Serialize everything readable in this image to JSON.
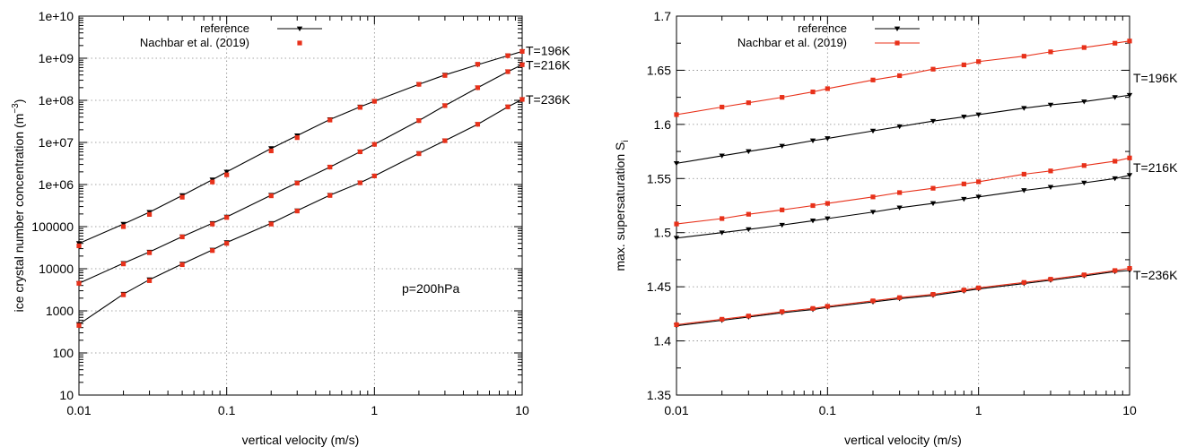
{
  "chart_data": [
    {
      "type": "line",
      "xlabel": "vertical velocity (m/s)",
      "ylabel": "ice crystal number concentration (m",
      "ylabel_sup": "−3",
      "ylabel_close": ")",
      "x_scale": "log",
      "y_scale": "log",
      "xlim": [
        0.01,
        10
      ],
      "ylim": [
        10,
        10000000000
      ],
      "grid": true,
      "legend_position": "top-left",
      "xticks": [
        0.01,
        0.1,
        1,
        10
      ],
      "xtick_labels": [
        "0.01",
        "0.1",
        "1",
        "10"
      ],
      "yticks": [
        10,
        100,
        1000,
        10000,
        100000,
        1000000,
        10000000,
        100000000,
        1000000000,
        10000000000
      ],
      "ytick_labels": [
        "10",
        "100",
        "1000",
        "10000",
        "100000",
        "1e+06",
        "1e+07",
        "1e+08",
        "1e+09",
        "1e+10"
      ],
      "annotation": "p=200hPa",
      "curve_labels": [
        {
          "text": "T=196K",
          "y": 1500000000
        },
        {
          "text": "T=216K",
          "y": 700000000
        },
        {
          "text": "T=236K",
          "y": 105000000
        }
      ],
      "series": [
        {
          "name": "reference",
          "color": "#000000",
          "marker": "triangle-down",
          "line": true,
          "x": [
            0.01,
            0.02,
            0.03,
            0.05,
            0.08,
            0.1,
            0.2,
            0.3,
            0.5,
            0.8,
            1,
            2,
            3,
            5,
            8,
            10
          ],
          "curves": [
            [
              40000,
              115000,
              220000,
              550000,
              1300000,
              2000000,
              7200000,
              14500000,
              35000000,
              70000000,
              95000000,
              240000000,
              400000000,
              700000000,
              1150000000,
              1450000000
            ],
            [
              4500,
              13500,
              25000,
              58000,
              120000,
              170000,
              560000,
              1100000,
              2600000,
              6000000,
              9000000,
              33000000,
              75000000,
              200000000,
              480000000,
              700000000
            ],
            [
              480,
              2500,
              5500,
              13000,
              28000,
              42000,
              120000,
              240000,
              560000,
              1100000,
              1600000,
              5500000,
              11000000,
              27000000,
              70000000,
              105000000
            ]
          ]
        },
        {
          "name": "Nachbar et al. (2019)",
          "color": "#e8311a",
          "marker": "square",
          "line": false,
          "x": [
            0.01,
            0.02,
            0.03,
            0.05,
            0.08,
            0.1,
            0.2,
            0.3,
            0.5,
            0.8,
            1,
            2,
            3,
            5,
            8,
            10
          ],
          "curves": [
            [
              35000,
              100000,
              195000,
              500000,
              1150000,
              1700000,
              6300000,
              13000000,
              34000000,
              68000000,
              95000000,
              240000000,
              390000000,
              720000000,
              1150000000,
              1450000000
            ],
            [
              4500,
              13000,
              24000,
              57000,
              115000,
              165000,
              540000,
              1080000,
              2600000,
              6000000,
              9000000,
              33000000,
              75000000,
              200000000,
              480000000,
              700000000
            ],
            [
              450,
              2400,
              5200,
              12500,
              27000,
              40000,
              115000,
              235000,
              550000,
              1100000,
              1600000,
              5400000,
              11000000,
              27000000,
              70000000,
              105000000
            ]
          ]
        }
      ]
    },
    {
      "type": "line",
      "xlabel": "vertical velocity (m/s)",
      "ylabel": "max. supersaturation S",
      "ylabel_sub": "i",
      "x_scale": "log",
      "y_scale": "linear",
      "xlim": [
        0.01,
        10
      ],
      "ylim": [
        1.35,
        1.7
      ],
      "grid": true,
      "legend_position": "top-left",
      "xticks": [
        0.01,
        0.1,
        1,
        10
      ],
      "xtick_labels": [
        "0.01",
        "0.1",
        "1",
        "10"
      ],
      "yticks": [
        1.35,
        1.4,
        1.45,
        1.5,
        1.55,
        1.6,
        1.65,
        1.7
      ],
      "ytick_labels": [
        "1.35",
        "1.4",
        "1.45",
        "1.5",
        "1.55",
        "1.6",
        "1.65",
        "1.7"
      ],
      "curve_labels": [
        {
          "text": "T=196K",
          "y": 1.643
        },
        {
          "text": "T=216K",
          "y": 1.56
        },
        {
          "text": "T=236K",
          "y": 1.461
        }
      ],
      "series": [
        {
          "name": "reference",
          "color": "#000000",
          "marker": "triangle-down",
          "line": true,
          "x": [
            0.01,
            0.02,
            0.03,
            0.05,
            0.08,
            0.1,
            0.2,
            0.3,
            0.5,
            0.8,
            1,
            2,
            3,
            5,
            8,
            10
          ],
          "curves": [
            [
              1.564,
              1.571,
              1.575,
              1.58,
              1.585,
              1.587,
              1.594,
              1.598,
              1.603,
              1.607,
              1.609,
              1.615,
              1.618,
              1.621,
              1.625,
              1.627
            ],
            [
              1.495,
              1.5,
              1.503,
              1.507,
              1.511,
              1.513,
              1.519,
              1.523,
              1.527,
              1.531,
              1.533,
              1.539,
              1.542,
              1.546,
              1.55,
              1.553
            ],
            [
              1.414,
              1.419,
              1.422,
              1.426,
              1.429,
              1.431,
              1.436,
              1.439,
              1.442,
              1.446,
              1.448,
              1.453,
              1.456,
              1.46,
              1.464,
              1.465
            ]
          ]
        },
        {
          "name": "Nachbar et al. (2019)",
          "color": "#e8311a",
          "marker": "square",
          "line": true,
          "x": [
            0.01,
            0.02,
            0.03,
            0.05,
            0.08,
            0.1,
            0.2,
            0.3,
            0.5,
            0.8,
            1,
            2,
            3,
            5,
            8,
            10
          ],
          "curves": [
            [
              1.609,
              1.616,
              1.62,
              1.625,
              1.63,
              1.633,
              1.641,
              1.645,
              1.651,
              1.655,
              1.658,
              1.663,
              1.667,
              1.671,
              1.675,
              1.677
            ],
            [
              1.508,
              1.513,
              1.517,
              1.521,
              1.525,
              1.527,
              1.533,
              1.537,
              1.541,
              1.545,
              1.547,
              1.554,
              1.557,
              1.562,
              1.566,
              1.569
            ],
            [
              1.415,
              1.42,
              1.423,
              1.427,
              1.43,
              1.432,
              1.437,
              1.44,
              1.443,
              1.447,
              1.449,
              1.454,
              1.457,
              1.461,
              1.465,
              1.467
            ]
          ]
        }
      ]
    }
  ]
}
